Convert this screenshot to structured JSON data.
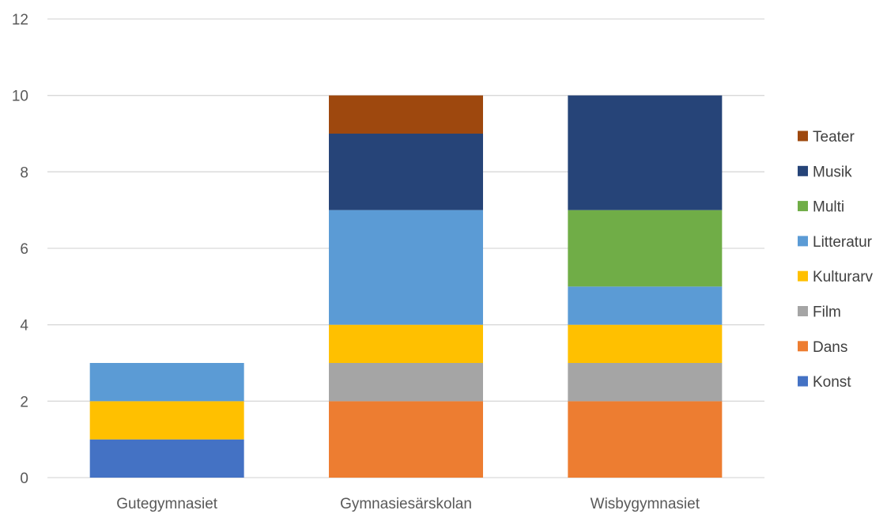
{
  "chart_data": {
    "type": "bar",
    "stacked": true,
    "categories": [
      "Gutegymnasiet",
      "Gymnasiesärskolan",
      "Wisbygymnasiet"
    ],
    "series": [
      {
        "name": "Konst",
        "color": "#4472C4",
        "values": [
          1,
          0,
          0
        ]
      },
      {
        "name": "Dans",
        "color": "#ED7D31",
        "values": [
          0,
          2,
          2
        ]
      },
      {
        "name": "Film",
        "color": "#A5A5A5",
        "values": [
          0,
          1,
          1
        ]
      },
      {
        "name": "Kulturarv",
        "color": "#FFC000",
        "values": [
          1,
          1,
          1
        ]
      },
      {
        "name": "Litteratur",
        "color": "#5B9BD5",
        "values": [
          1,
          3,
          1
        ]
      },
      {
        "name": "Multi",
        "color": "#70AD47",
        "values": [
          0,
          0,
          2
        ]
      },
      {
        "name": "Musik",
        "color": "#264478",
        "values": [
          0,
          2,
          3
        ]
      },
      {
        "name": "Teater",
        "color": "#9E480E",
        "values": [
          0,
          1,
          0
        ]
      }
    ],
    "yticks": [
      "0",
      "2",
      "4",
      "6",
      "8",
      "10",
      "12"
    ],
    "ylim": [
      0,
      12
    ],
    "grid": true,
    "legend": "right",
    "title": "",
    "xlabel": "",
    "ylabel": ""
  }
}
